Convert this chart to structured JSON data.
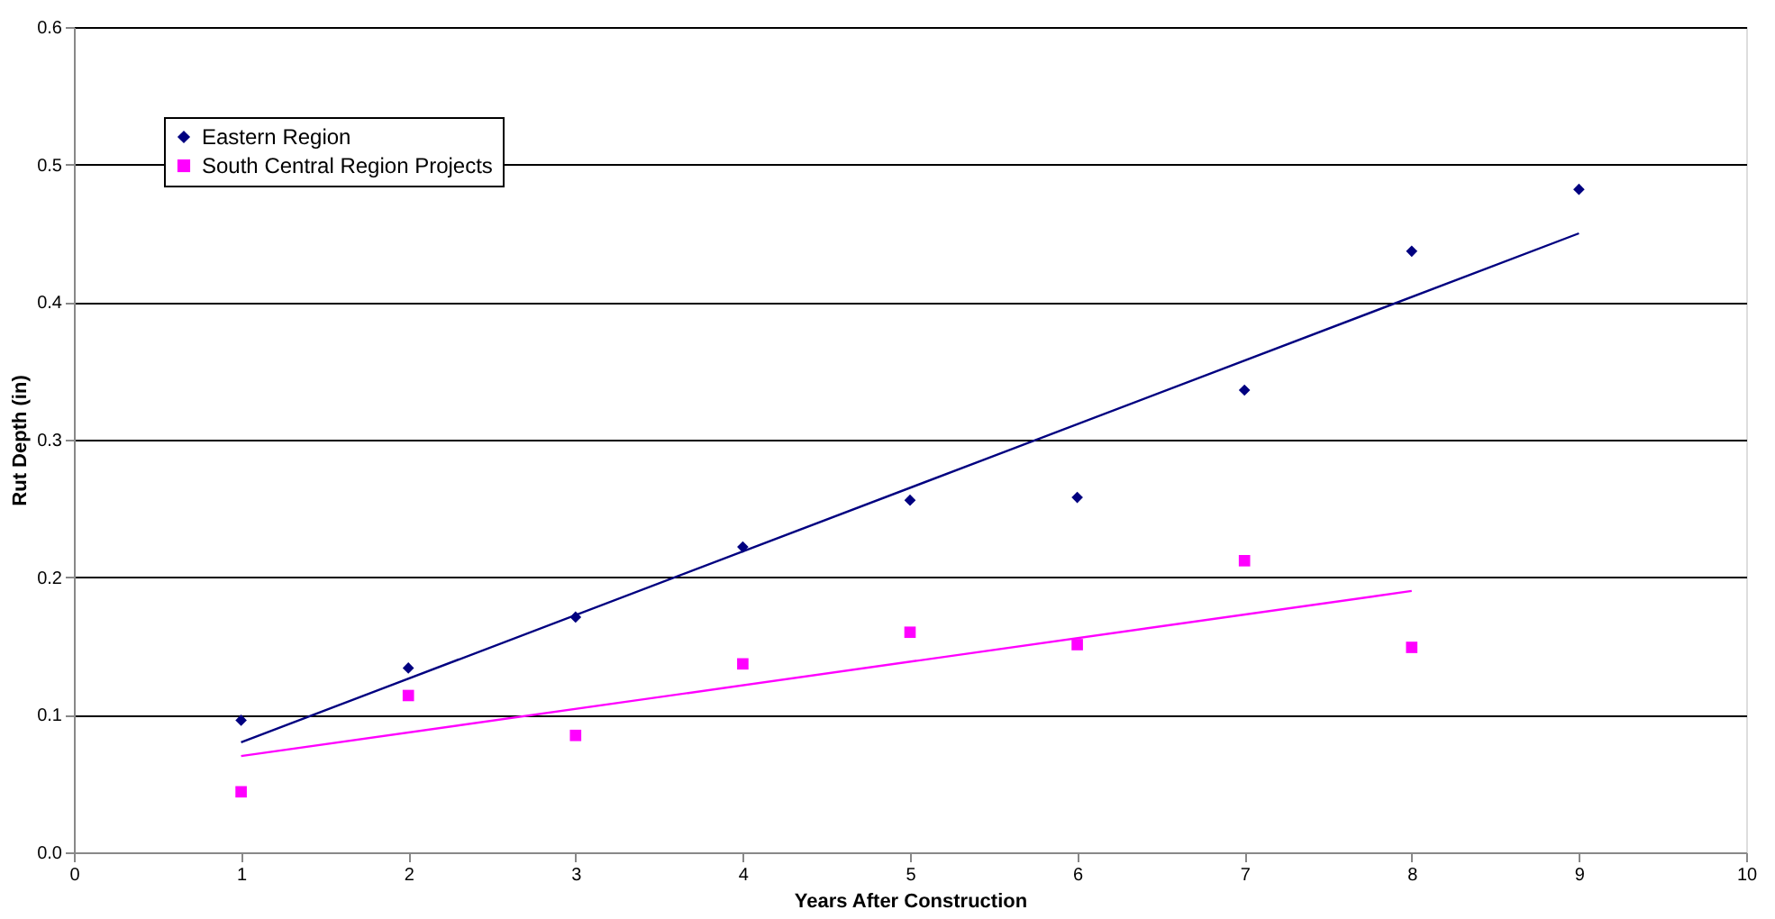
{
  "chart_data": {
    "type": "scatter",
    "xlabel": "Years After Construction",
    "ylabel": "Rut Depth (in)",
    "xlim": [
      0,
      10
    ],
    "xticks": [
      0,
      1,
      2,
      3,
      4,
      5,
      6,
      7,
      8,
      9,
      10
    ],
    "ylim": [
      0,
      0.6
    ],
    "yticks": [
      {
        "value": 0,
        "label": "0.0"
      },
      0.1,
      0.2,
      0.3,
      0.4,
      0.5,
      0.6
    ],
    "grid": "y",
    "legend": "top left",
    "series": [
      {
        "name": "Eastern Region",
        "color": "#000080",
        "marker": "diamond",
        "x": [
          1,
          2,
          3,
          4,
          5,
          6,
          7,
          8,
          9
        ],
        "values": [
          0.096,
          0.134,
          0.171,
          0.222,
          0.256,
          0.258,
          0.336,
          0.437,
          0.482
        ]
      },
      {
        "name": "South Central Region Projects",
        "color": "#ff00ff",
        "marker": "square",
        "x": [
          1,
          2,
          3,
          4,
          5,
          6,
          7,
          8
        ],
        "values": [
          0.044,
          0.114,
          0.085,
          0.137,
          0.16,
          0.151,
          0.212,
          0.149
        ]
      },
      {
        "type": "line",
        "color": "#000080",
        "marker": "none",
        "x": [
          1,
          9
        ],
        "values": [
          0.08,
          0.45
        ]
      },
      {
        "type": "line",
        "color": "#ff00ff",
        "marker": "none",
        "x": [
          1,
          8
        ],
        "values": [
          0.07,
          0.19
        ]
      }
    ]
  }
}
